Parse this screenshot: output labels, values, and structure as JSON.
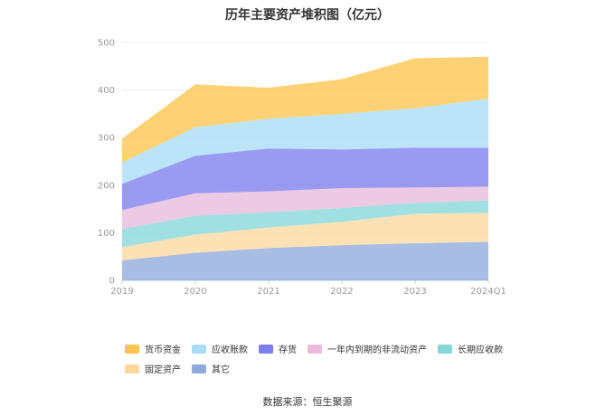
{
  "chart_data": {
    "type": "area",
    "stacked": true,
    "title": "历年主要资产堆积图（亿元）",
    "categories": [
      "2019",
      "2020",
      "2021",
      "2022",
      "2023",
      "2024Q1"
    ],
    "ylim": [
      0,
      500
    ],
    "yticks": [
      0,
      100,
      200,
      300,
      400,
      500
    ],
    "grid": true,
    "legend_position": "bottom",
    "series": [
      {
        "name": "其它",
        "color": "#8fa9dc",
        "values": [
          42,
          58,
          68,
          74,
          78,
          81
        ]
      },
      {
        "name": "固定资产",
        "color": "#fbd9a0",
        "values": [
          28,
          38,
          43,
          49,
          62,
          61
        ]
      },
      {
        "name": "长期应收款",
        "color": "#86d7d7",
        "values": [
          38,
          40,
          32,
          29,
          23,
          26
        ]
      },
      {
        "name": "一年内到期的非流动资产",
        "color": "#e8bbdb",
        "values": [
          40,
          47,
          44,
          42,
          32,
          29
        ]
      },
      {
        "name": "存货",
        "color": "#7d7ef0",
        "values": [
          55,
          79,
          90,
          81,
          84,
          82
        ]
      },
      {
        "name": "应收账款",
        "color": "#a8ddf7",
        "values": [
          45,
          60,
          63,
          75,
          83,
          103
        ]
      },
      {
        "name": "货币资金",
        "color": "#fdc54d",
        "values": [
          50,
          90,
          65,
          73,
          105,
          88
        ]
      }
    ],
    "legend_order": [
      "货币资金",
      "应收账款",
      "存货",
      "一年内到期的非流动资产",
      "长期应收款",
      "固定资产",
      "其它"
    ],
    "source": "数据来源：恒生聚源"
  }
}
